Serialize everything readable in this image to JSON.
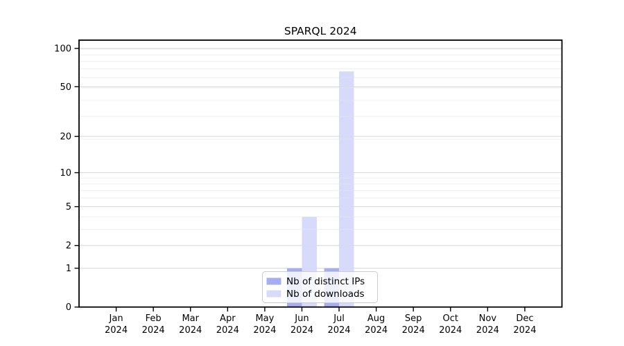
{
  "chart_data": {
    "type": "bar",
    "title": "SPARQL 2024",
    "categories": [
      "Jan",
      "Feb",
      "Mar",
      "Apr",
      "May",
      "Jun",
      "Jul",
      "Aug",
      "Sep",
      "Oct",
      "Nov",
      "Dec"
    ],
    "year": "2024",
    "series": [
      {
        "name": "Nb of distinct IPs",
        "color": "#a6adf0",
        "values": [
          0,
          0,
          0,
          0,
          0,
          1,
          1,
          0,
          0,
          0,
          0,
          0
        ]
      },
      {
        "name": "Nb of downloads",
        "color": "#d7dafa",
        "values": [
          0,
          0,
          0,
          0,
          0,
          4,
          66,
          0,
          0,
          0,
          0,
          0
        ]
      }
    ],
    "y_ticks": [
      0,
      1,
      2,
      5,
      10,
      20,
      50,
      100
    ],
    "scale": "log1p",
    "ylim": [
      0,
      116
    ],
    "xlabel": "",
    "ylabel": "",
    "grid": true,
    "legend_position": "lower-center-inside",
    "colors": {
      "grid_major": "#d8d8d8",
      "grid_minor": "#efefef",
      "axis": "#000000",
      "legend_border": "#cccccc",
      "background": "#ffffff"
    }
  }
}
